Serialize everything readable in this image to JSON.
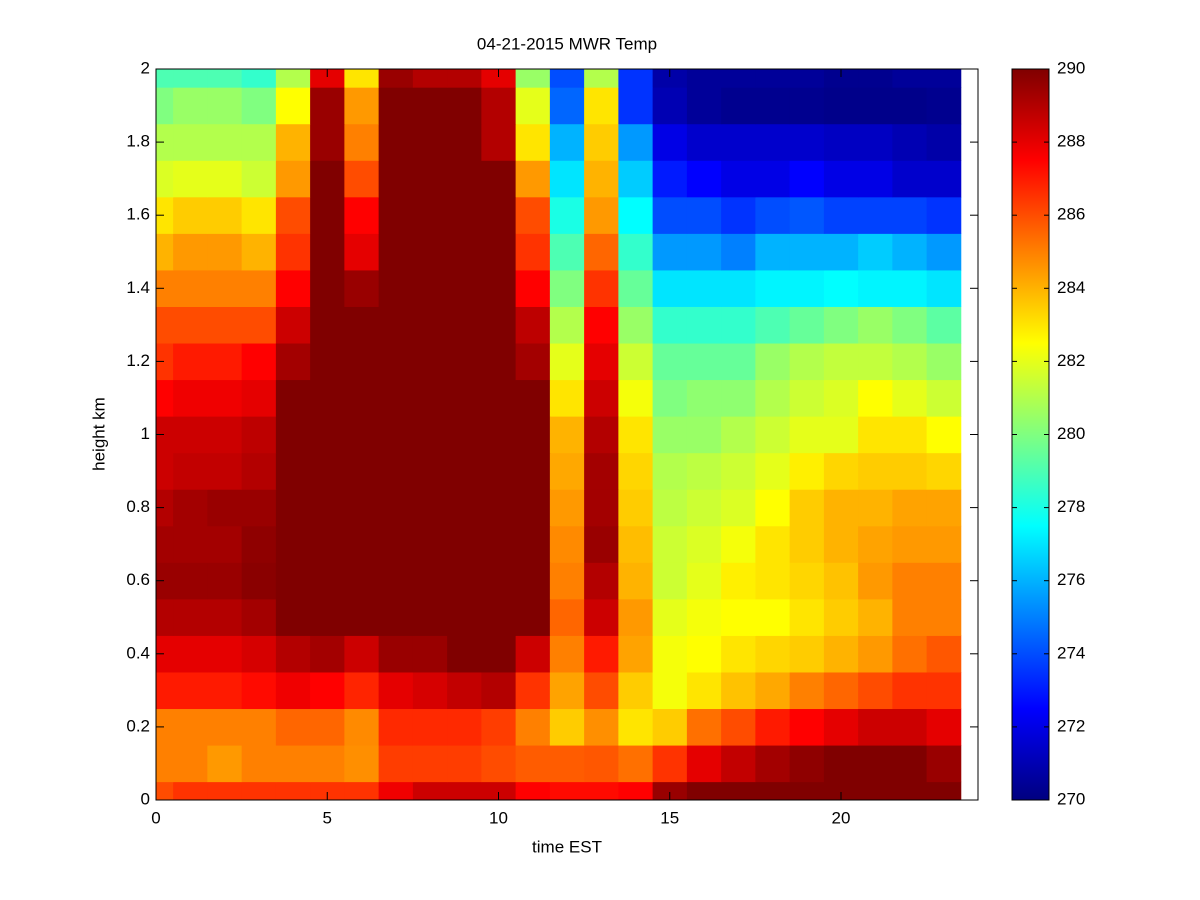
{
  "chart_data": {
    "type": "heatmap",
    "title": "04-21-2015 MWR Temp",
    "x_label": "time EST",
    "y_label": "height km",
    "xbins": [
      0,
      0.5,
      1.5,
      2.5,
      3.5,
      4.5,
      5.5,
      6.5,
      7.5,
      8.5,
      9.5,
      10.5,
      11.5,
      12.5,
      13.5,
      14.5,
      15.5,
      16.5,
      17.5,
      18.5,
      19.5,
      20.5,
      21.5,
      22.5,
      23.5
    ],
    "ybins": [
      0,
      0.05,
      0.15,
      0.25,
      0.35,
      0.45,
      0.55,
      0.65,
      0.75,
      0.85,
      0.95,
      1.05,
      1.15,
      1.25,
      1.35,
      1.45,
      1.55,
      1.65,
      1.75,
      1.85,
      1.95,
      2
    ],
    "values": [
      [
        286,
        286.5,
        286.5,
        286.5,
        286.5,
        286.5,
        286.5,
        287.8,
        288.5,
        288.5,
        288.5,
        287.5,
        287.3,
        287.3,
        287.5,
        289.5,
        290,
        290,
        290,
        290,
        290,
        290,
        290,
        290
      ],
      [
        285,
        285,
        284.5,
        285,
        285,
        285,
        284.7,
        286.3,
        286.3,
        286.3,
        286,
        285.7,
        285.7,
        285.8,
        285.3,
        286.5,
        288,
        288.7,
        289.3,
        289.7,
        290,
        290,
        290,
        289.5
      ],
      [
        285,
        285,
        285,
        285,
        285.5,
        285.5,
        284.8,
        286.7,
        286.7,
        286.7,
        286.3,
        285,
        283.5,
        284.7,
        283,
        283.5,
        285.3,
        286,
        287,
        287.5,
        288,
        288.5,
        288.5,
        288
      ],
      [
        287,
        287,
        287,
        287.3,
        287.8,
        287.5,
        286.8,
        288,
        288.3,
        288.7,
        289,
        286.5,
        284.3,
        286,
        283.5,
        282.3,
        283,
        283.7,
        284.2,
        285,
        285.5,
        286,
        286.5,
        286.5
      ],
      [
        288,
        288,
        288,
        288.3,
        289,
        289.3,
        288.5,
        289.5,
        289.5,
        290,
        290,
        288.5,
        285,
        287,
        284.3,
        282.3,
        282.5,
        283,
        283.3,
        283.5,
        284,
        284.5,
        285.3,
        285.8
      ],
      [
        289,
        289,
        289,
        289.3,
        290,
        290,
        290,
        290,
        290,
        290,
        290,
        290,
        285.5,
        288.5,
        284.5,
        282,
        282.3,
        282.5,
        282.5,
        283,
        283.5,
        284,
        285,
        285
      ],
      [
        289.5,
        289.5,
        289.5,
        289.8,
        290,
        290,
        290,
        290,
        290,
        290,
        290,
        290,
        285,
        289,
        284,
        281.5,
        282,
        282.8,
        283,
        283.3,
        283.7,
        284.5,
        285,
        285
      ],
      [
        289.3,
        289.3,
        289.3,
        289.7,
        290,
        290,
        290,
        290,
        290,
        290,
        290,
        290,
        284.8,
        289.5,
        283.8,
        281.5,
        281.8,
        282.3,
        283,
        283.5,
        284,
        284.3,
        284.5,
        284.5
      ],
      [
        289,
        289.3,
        289.5,
        289.5,
        290,
        290,
        290,
        290,
        290,
        290,
        290,
        290,
        284.5,
        289.3,
        283.5,
        281.2,
        281.5,
        281.8,
        282.5,
        283.5,
        284,
        284,
        284.3,
        284.3
      ],
      [
        288.5,
        288.7,
        288.7,
        289,
        290,
        290,
        290,
        290,
        290,
        290,
        290,
        290,
        284.2,
        289.3,
        283.3,
        281,
        281.2,
        281.5,
        282,
        282.8,
        283.3,
        283.5,
        283.5,
        283.3
      ],
      [
        288.5,
        288.5,
        288.5,
        288.8,
        290,
        290,
        290,
        290,
        290,
        290,
        290,
        290,
        284,
        289,
        283,
        280.5,
        280.5,
        281,
        281.5,
        282,
        282,
        283,
        283,
        282.5
      ],
      [
        287.5,
        287.8,
        287.8,
        288,
        290,
        290,
        290,
        290,
        290,
        290,
        290,
        290,
        283,
        288.5,
        282.3,
        280,
        280.3,
        280.3,
        281,
        281.5,
        281.8,
        282.5,
        282,
        281.5
      ],
      [
        286.5,
        287,
        287,
        287.5,
        289.3,
        290,
        290,
        290,
        290,
        290,
        290,
        289.3,
        282,
        288,
        281.5,
        279.5,
        279.5,
        279.5,
        280.5,
        281,
        281.3,
        281.3,
        281,
        280.5
      ],
      [
        286,
        286,
        286,
        286,
        288.5,
        290,
        290,
        290,
        290,
        290,
        290,
        288.8,
        281,
        287.5,
        280.5,
        278.5,
        278.5,
        278.5,
        279,
        279.5,
        280,
        280.5,
        280,
        279.3
      ],
      [
        285,
        285,
        285,
        285,
        287.5,
        290,
        289.5,
        290,
        290,
        290,
        290,
        287.5,
        280,
        286.5,
        279.5,
        277,
        277,
        277,
        277.3,
        277.3,
        277.5,
        277.3,
        277.3,
        277
      ],
      [
        284,
        284.5,
        284.5,
        284,
        286.5,
        290,
        288,
        290,
        290,
        290,
        290,
        286.5,
        279,
        285.5,
        278.5,
        275.5,
        275.5,
        275,
        276,
        276,
        276,
        276.5,
        276,
        275.5
      ],
      [
        283,
        283.5,
        283.5,
        283,
        286,
        290,
        287.5,
        290,
        290,
        290,
        290,
        286,
        278,
        284.5,
        277.5,
        274,
        274,
        273.5,
        274,
        274.2,
        273.8,
        273.8,
        273.8,
        273.5
      ],
      [
        281.8,
        282,
        282,
        281.5,
        284.5,
        290,
        286,
        290,
        290,
        290,
        290,
        284.5,
        277,
        284,
        276.5,
        273,
        272.5,
        272,
        272,
        272.5,
        272,
        272,
        271.5,
        271.5
      ],
      [
        281,
        281,
        281,
        281,
        284,
        289.5,
        285,
        290,
        290,
        290,
        289,
        283,
        276,
        283.5,
        275.5,
        272,
        271.5,
        271.5,
        271.5,
        271.5,
        271.3,
        271.3,
        271,
        270.8
      ],
      [
        280,
        280.5,
        280.5,
        280,
        282.5,
        289.5,
        284.5,
        290,
        290,
        290,
        289,
        282,
        274.5,
        283,
        273.5,
        271,
        270.5,
        270.3,
        270.3,
        270.3,
        270.2,
        270.2,
        270.2,
        270.3
      ],
      [
        279,
        279,
        279,
        278.5,
        281,
        288,
        283,
        289.5,
        289,
        289,
        288,
        280.5,
        274,
        281,
        273.5,
        270.8,
        270.5,
        270.5,
        270.5,
        270.5,
        270.3,
        270.3,
        270.5,
        270.5
      ]
    ],
    "xlim": [
      0,
      24
    ],
    "xticks": [
      0,
      5,
      10,
      15,
      20
    ],
    "ylim": [
      0,
      2
    ],
    "yticks": [
      0,
      0.2,
      0.4,
      0.6,
      0.8,
      1,
      1.2,
      1.4,
      1.6,
      1.8,
      2
    ],
    "colormap": "jet",
    "clim": [
      270,
      290
    ],
    "cticks": [
      270,
      272,
      274,
      276,
      278,
      280,
      282,
      284,
      286,
      288,
      290
    ]
  }
}
